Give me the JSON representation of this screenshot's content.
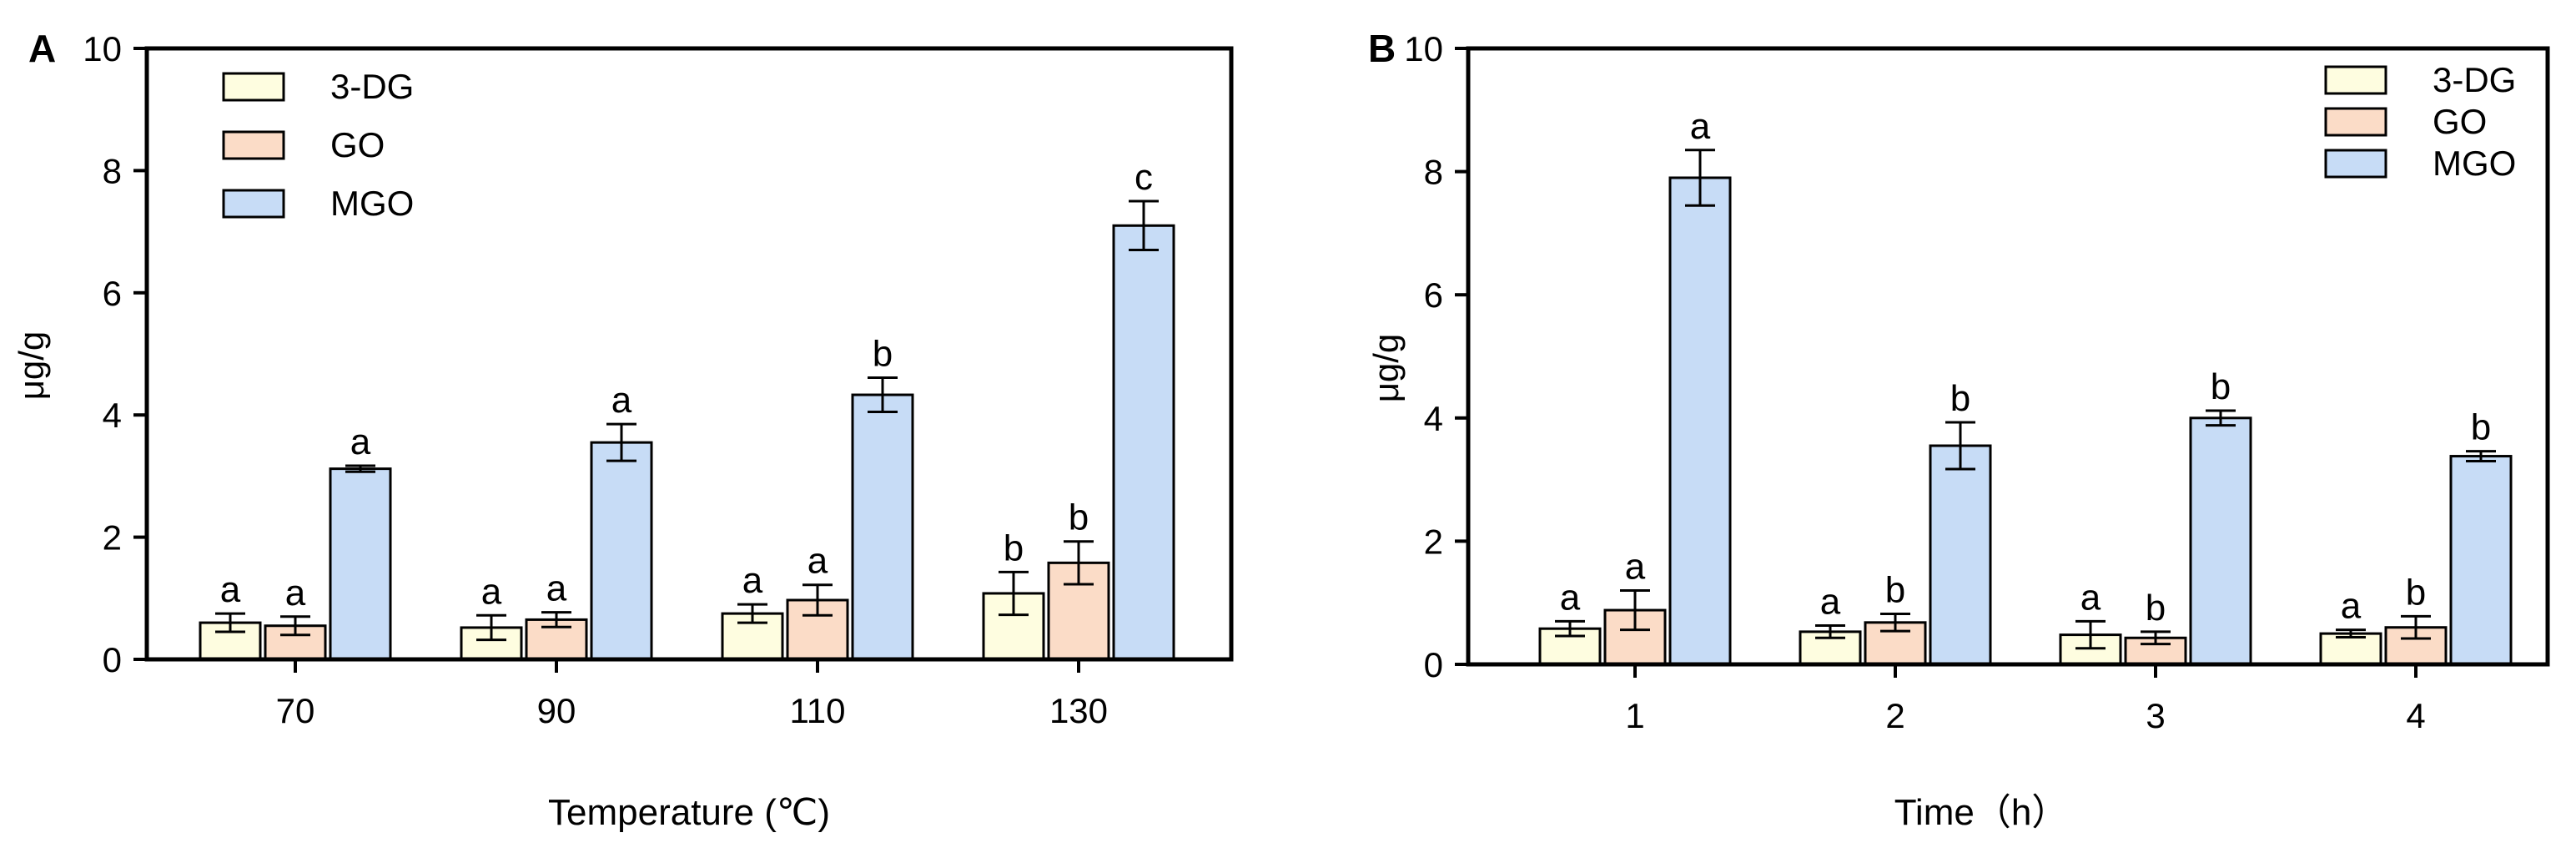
{
  "chart_data": [
    {
      "type": "bar",
      "panel_label": "A",
      "xlabel": "Temperature (℃)",
      "ylabel": "μg/g",
      "ylim": [
        0,
        10
      ],
      "yticks": [
        "0",
        "2",
        "4",
        "6",
        "8",
        "10"
      ],
      "categories": [
        "70",
        "90",
        "110",
        "130"
      ],
      "legend_position": "top-left",
      "series": [
        {
          "name": "3-DG",
          "color": "#fefde0",
          "values": [
            0.6,
            0.52,
            0.75,
            1.08
          ],
          "errors": [
            0.15,
            0.2,
            0.15,
            0.35
          ],
          "letters": [
            "a",
            "a",
            "a",
            "b"
          ]
        },
        {
          "name": "GO",
          "color": "#fbdcc7",
          "values": [
            0.55,
            0.65,
            0.97,
            1.58
          ],
          "errors": [
            0.15,
            0.12,
            0.25,
            0.35
          ],
          "letters": [
            "a",
            "a",
            "a",
            "b"
          ]
        },
        {
          "name": "MGO",
          "color": "#c7dcf6",
          "values": [
            3.12,
            3.55,
            4.33,
            7.1
          ],
          "errors": [
            0.05,
            0.3,
            0.28,
            0.4
          ],
          "letters": [
            "a",
            "a",
            "b",
            "c"
          ]
        }
      ]
    },
    {
      "type": "bar",
      "panel_label": "B",
      "xlabel": "Time（h）",
      "ylabel": "μg/g",
      "ylim": [
        0,
        10
      ],
      "yticks": [
        "0",
        "2",
        "4",
        "6",
        "8",
        "10"
      ],
      "categories": [
        "1",
        "2",
        "3",
        "4"
      ],
      "legend_position": "top-right",
      "series": [
        {
          "name": "3-DG",
          "color": "#fefde0",
          "values": [
            0.58,
            0.53,
            0.48,
            0.5
          ],
          "errors": [
            0.12,
            0.1,
            0.22,
            0.06
          ],
          "letters": [
            "a",
            "a",
            "a",
            "a"
          ]
        },
        {
          "name": "GO",
          "color": "#fbdcc7",
          "values": [
            0.88,
            0.68,
            0.43,
            0.6
          ],
          "errors": [
            0.32,
            0.14,
            0.1,
            0.18
          ],
          "letters": [
            "a",
            "b",
            "b",
            "b"
          ]
        },
        {
          "name": "MGO",
          "color": "#c7dcf6",
          "values": [
            7.9,
            3.55,
            4.0,
            3.38
          ],
          "errors": [
            0.45,
            0.38,
            0.12,
            0.08
          ],
          "letters": [
            "a",
            "b",
            "b",
            "b"
          ]
        }
      ]
    }
  ]
}
